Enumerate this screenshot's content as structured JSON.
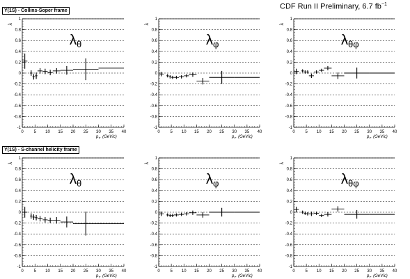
{
  "frames": [
    {
      "label": "Υ(1S) - Collins-Soper frame"
    },
    {
      "label": "Υ(1S) - S-channel helicity frame"
    }
  ],
  "header": {
    "label": "CDF Run II Preliminary, 6.7 fb",
    "exponent": "−1"
  },
  "xaxis": {
    "label": "p",
    "subscript": "T",
    "unit": "(GeV/c)"
  },
  "chart_data": [
    {
      "type": "scatter",
      "frame": "Collins-Soper",
      "panel_label": "λθ",
      "ylabel": "λ",
      "ylim": [
        -1,
        1
      ],
      "xlim": [
        0,
        40
      ],
      "xticks": [
        0,
        5,
        10,
        15,
        20,
        25,
        30,
        35,
        40
      ],
      "yticks": [
        -1,
        -0.8,
        -0.6,
        -0.4,
        -0.2,
        0,
        0.2,
        0.4,
        0.6,
        0.8,
        1
      ],
      "points": [
        {
          "x": 1,
          "y": 0.22,
          "xerr": 1,
          "yerr": 0.14
        },
        {
          "x": 3.5,
          "y": 0.0,
          "xerr": 0.5,
          "yerr": 0.05
        },
        {
          "x": 4.5,
          "y": -0.07,
          "xerr": 0.5,
          "yerr": 0.05
        },
        {
          "x": 5.5,
          "y": -0.05,
          "xerr": 0.5,
          "yerr": 0.06
        },
        {
          "x": 7,
          "y": 0.04,
          "xerr": 1,
          "yerr": 0.05
        },
        {
          "x": 9,
          "y": 0.03,
          "xerr": 1,
          "yerr": 0.05
        },
        {
          "x": 11,
          "y": 0.01,
          "xerr": 1,
          "yerr": 0.05
        },
        {
          "x": 13.5,
          "y": 0.04,
          "xerr": 1.5,
          "yerr": 0.05
        },
        {
          "x": 17.5,
          "y": 0.05,
          "xerr": 2.5,
          "yerr": 0.08
        },
        {
          "x": 25,
          "y": 0.07,
          "xerr": 5,
          "yerr": 0.2
        },
        {
          "x": 35,
          "y": 0.09,
          "xerr": 5,
          "yerr": 0
        }
      ]
    },
    {
      "type": "scatter",
      "frame": "Collins-Soper",
      "panel_label": "λφ",
      "ylabel": "λ",
      "ylim": [
        -1,
        1
      ],
      "xlim": [
        0,
        40
      ],
      "xticks": [
        0,
        5,
        10,
        15,
        20,
        25,
        30,
        35,
        40
      ],
      "yticks": [
        -1,
        -0.8,
        -0.6,
        -0.4,
        -0.2,
        0,
        0.2,
        0.4,
        0.6,
        0.8,
        1
      ],
      "points": [
        {
          "x": 1,
          "y": -0.02,
          "xerr": 1,
          "yerr": 0.04
        },
        {
          "x": 3.5,
          "y": -0.05,
          "xerr": 0.5,
          "yerr": 0.03
        },
        {
          "x": 4.5,
          "y": -0.07,
          "xerr": 0.5,
          "yerr": 0.03
        },
        {
          "x": 5.5,
          "y": -0.08,
          "xerr": 0.5,
          "yerr": 0.03
        },
        {
          "x": 7,
          "y": -0.08,
          "xerr": 1,
          "yerr": 0.03
        },
        {
          "x": 9,
          "y": -0.07,
          "xerr": 1,
          "yerr": 0.03
        },
        {
          "x": 11,
          "y": -0.05,
          "xerr": 1,
          "yerr": 0.03
        },
        {
          "x": 13.5,
          "y": -0.03,
          "xerr": 1.5,
          "yerr": 0.04
        },
        {
          "x": 17.5,
          "y": -0.15,
          "xerr": 2.5,
          "yerr": 0.06
        },
        {
          "x": 25,
          "y": -0.08,
          "xerr": 5,
          "yerr": 0.12
        },
        {
          "x": 35,
          "y": -0.08,
          "xerr": 5,
          "yerr": 0
        }
      ]
    },
    {
      "type": "scatter",
      "frame": "Collins-Soper",
      "panel_label": "λθφ",
      "ylabel": "λ",
      "ylim": [
        -1,
        1
      ],
      "xlim": [
        0,
        40
      ],
      "xticks": [
        0,
        5,
        10,
        15,
        20,
        25,
        30,
        35,
        40
      ],
      "yticks": [
        -1,
        -0.8,
        -0.6,
        -0.4,
        -0.2,
        0,
        0.2,
        0.4,
        0.6,
        0.8,
        1
      ],
      "points": [
        {
          "x": 1,
          "y": 0.03,
          "xerr": 1,
          "yerr": 0.05
        },
        {
          "x": 3.5,
          "y": 0.04,
          "xerr": 0.5,
          "yerr": 0.03
        },
        {
          "x": 4.5,
          "y": 0.02,
          "xerr": 0.5,
          "yerr": 0.03
        },
        {
          "x": 5.5,
          "y": 0.02,
          "xerr": 0.5,
          "yerr": 0.03
        },
        {
          "x": 7,
          "y": -0.05,
          "xerr": 1,
          "yerr": 0.04
        },
        {
          "x": 9,
          "y": 0.02,
          "xerr": 1,
          "yerr": 0.03
        },
        {
          "x": 11,
          "y": 0.05,
          "xerr": 1,
          "yerr": 0.03
        },
        {
          "x": 13.5,
          "y": 0.09,
          "xerr": 1.5,
          "yerr": 0.04
        },
        {
          "x": 17.5,
          "y": -0.05,
          "xerr": 2.5,
          "yerr": 0.06
        },
        {
          "x": 25,
          "y": 0.0,
          "xerr": 5,
          "yerr": 0.1
        },
        {
          "x": 35,
          "y": 0.0,
          "xerr": 5,
          "yerr": 0
        }
      ]
    },
    {
      "type": "scatter",
      "frame": "S-channel helicity",
      "panel_label": "λθ",
      "ylabel": "λ",
      "ylim": [
        -1,
        1
      ],
      "xlim": [
        0,
        40
      ],
      "xticks": [
        0,
        5,
        10,
        15,
        20,
        25,
        30,
        35,
        40
      ],
      "yticks": [
        -1,
        -0.8,
        -0.6,
        -0.4,
        -0.2,
        0,
        0.2,
        0.4,
        0.6,
        0.8,
        1
      ],
      "points": [
        {
          "x": 1,
          "y": 0.0,
          "xerr": 1,
          "yerr": 0.1
        },
        {
          "x": 3.5,
          "y": -0.07,
          "xerr": 0.5,
          "yerr": 0.05
        },
        {
          "x": 4.5,
          "y": -0.09,
          "xerr": 0.5,
          "yerr": 0.05
        },
        {
          "x": 5.5,
          "y": -0.1,
          "xerr": 0.5,
          "yerr": 0.05
        },
        {
          "x": 7,
          "y": -0.12,
          "xerr": 1,
          "yerr": 0.05
        },
        {
          "x": 9,
          "y": -0.14,
          "xerr": 1,
          "yerr": 0.05
        },
        {
          "x": 11,
          "y": -0.15,
          "xerr": 1,
          "yerr": 0.05
        },
        {
          "x": 13.5,
          "y": -0.15,
          "xerr": 1.5,
          "yerr": 0.06
        },
        {
          "x": 17.5,
          "y": -0.18,
          "xerr": 2.5,
          "yerr": 0.1
        },
        {
          "x": 25,
          "y": -0.21,
          "xerr": 5,
          "yerr": 0.22
        },
        {
          "x": 35,
          "y": -0.21,
          "xerr": 5,
          "yerr": 0
        }
      ]
    },
    {
      "type": "scatter",
      "frame": "S-channel helicity",
      "panel_label": "λφ",
      "ylabel": "λ",
      "ylim": [
        -1,
        1
      ],
      "xlim": [
        0,
        40
      ],
      "xticks": [
        0,
        5,
        10,
        15,
        20,
        25,
        30,
        35,
        40
      ],
      "yticks": [
        -1,
        -0.8,
        -0.6,
        -0.4,
        -0.2,
        0,
        0.2,
        0.4,
        0.6,
        0.8,
        1
      ],
      "points": [
        {
          "x": 1,
          "y": -0.03,
          "xerr": 1,
          "yerr": 0.04
        },
        {
          "x": 3.5,
          "y": -0.05,
          "xerr": 0.5,
          "yerr": 0.03
        },
        {
          "x": 4.5,
          "y": -0.06,
          "xerr": 0.5,
          "yerr": 0.03
        },
        {
          "x": 5.5,
          "y": -0.06,
          "xerr": 0.5,
          "yerr": 0.03
        },
        {
          "x": 7,
          "y": -0.05,
          "xerr": 1,
          "yerr": 0.03
        },
        {
          "x": 9,
          "y": -0.04,
          "xerr": 1,
          "yerr": 0.03
        },
        {
          "x": 11,
          "y": -0.03,
          "xerr": 1,
          "yerr": 0.03
        },
        {
          "x": 13.5,
          "y": -0.01,
          "xerr": 1.5,
          "yerr": 0.04
        },
        {
          "x": 17.5,
          "y": -0.05,
          "xerr": 2.5,
          "yerr": 0.05
        },
        {
          "x": 25,
          "y": 0.0,
          "xerr": 5,
          "yerr": 0.08
        },
        {
          "x": 35,
          "y": 0.0,
          "xerr": 5,
          "yerr": 0
        }
      ]
    },
    {
      "type": "scatter",
      "frame": "S-channel helicity",
      "panel_label": "λθφ",
      "ylabel": "λ",
      "ylim": [
        -1,
        1
      ],
      "xlim": [
        0,
        40
      ],
      "xticks": [
        0,
        5,
        10,
        15,
        20,
        25,
        30,
        35,
        40
      ],
      "yticks": [
        -1,
        -0.8,
        -0.6,
        -0.4,
        -0.2,
        0,
        0.2,
        0.4,
        0.6,
        0.8,
        1
      ],
      "points": [
        {
          "x": 1,
          "y": 0.05,
          "xerr": 1,
          "yerr": 0.05
        },
        {
          "x": 3.5,
          "y": 0.0,
          "xerr": 0.5,
          "yerr": 0.03
        },
        {
          "x": 4.5,
          "y": -0.02,
          "xerr": 0.5,
          "yerr": 0.03
        },
        {
          "x": 5.5,
          "y": -0.03,
          "xerr": 0.5,
          "yerr": 0.03
        },
        {
          "x": 7,
          "y": -0.03,
          "xerr": 1,
          "yerr": 0.04
        },
        {
          "x": 9,
          "y": -0.02,
          "xerr": 1,
          "yerr": 0.03
        },
        {
          "x": 11,
          "y": -0.06,
          "xerr": 1,
          "yerr": 0.03
        },
        {
          "x": 13.5,
          "y": -0.04,
          "xerr": 1.5,
          "yerr": 0.04
        },
        {
          "x": 17.5,
          "y": 0.06,
          "xerr": 2.5,
          "yerr": 0.05
        },
        {
          "x": 25,
          "y": -0.04,
          "xerr": 5,
          "yerr": 0.08
        },
        {
          "x": 35,
          "y": -0.04,
          "xerr": 5,
          "yerr": 0
        }
      ]
    }
  ]
}
